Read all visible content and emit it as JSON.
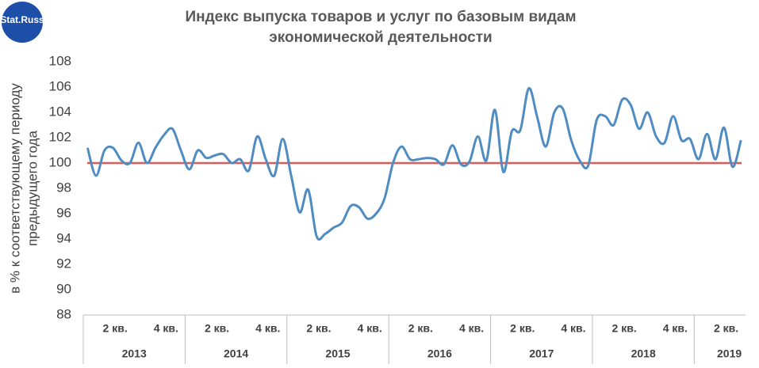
{
  "logo": "Stat.Russ",
  "chart_data": {
    "type": "line",
    "title": [
      "Индекс выпуска товаров и услуг по базовым видам",
      "экономической деятельности"
    ],
    "ylabel": [
      "в % к соответствующему периоду",
      "предыдущего года"
    ],
    "ylim": [
      88,
      108
    ],
    "yticks": [
      88,
      90,
      92,
      94,
      96,
      98,
      100,
      102,
      104,
      106,
      108
    ],
    "reference_line": {
      "value": 100,
      "color": "#e05a5a"
    },
    "groups": [
      {
        "label": "2013",
        "span": 12
      },
      {
        "label": "2014",
        "span": 12
      },
      {
        "label": "2015",
        "span": 12
      },
      {
        "label": "2016",
        "span": 12
      },
      {
        "label": "2017",
        "span": 12
      },
      {
        "label": "2018",
        "span": 12
      },
      {
        "label": "2019",
        "span": 6
      }
    ],
    "categories": [
      null,
      null,
      null,
      null,
      "2 кв.",
      null,
      null,
      null,
      null,
      null,
      "4 кв.",
      null,
      null,
      null,
      null,
      null,
      "2 кв.",
      null,
      null,
      null,
      null,
      null,
      "4 кв.",
      null,
      null,
      null,
      null,
      null,
      "2 кв.",
      null,
      null,
      null,
      null,
      null,
      "4 кв.",
      null,
      null,
      null,
      null,
      null,
      "2 кв.",
      null,
      null,
      null,
      null,
      null,
      "4 кв.",
      null,
      null,
      null,
      null,
      null,
      "2 кв.",
      null,
      null,
      null,
      null,
      null,
      "4 кв.",
      null,
      null,
      null,
      null,
      null,
      "2 кв.",
      null,
      null,
      null,
      null,
      null,
      "4 кв.",
      null,
      null,
      null,
      null,
      null,
      "2 кв.",
      null
    ],
    "series": [
      {
        "name": "Индекс",
        "color": "#4f8cc2",
        "values": [
          101.2,
          99.0,
          101.0,
          101.2,
          100.2,
          100.0,
          101.6,
          100.0,
          101.2,
          102.2,
          102.7,
          101.0,
          99.5,
          101.0,
          100.4,
          100.6,
          100.7,
          100.0,
          100.3,
          99.4,
          102.1,
          100.3,
          99.0,
          101.9,
          99.0,
          96.1,
          97.9,
          94.2,
          94.4,
          94.9,
          95.3,
          96.6,
          96.5,
          95.6,
          96.0,
          97.2,
          100.0,
          101.3,
          100.3,
          100.3,
          100.4,
          100.3,
          99.9,
          101.4,
          99.9,
          100.1,
          102.1,
          100.2,
          104.2,
          99.3,
          102.5,
          102.6,
          105.9,
          103.6,
          101.3,
          104.0,
          104.3,
          101.8,
          100.2,
          99.8,
          103.4,
          103.7,
          103.0,
          105.0,
          104.6,
          102.7,
          104.0,
          102.1,
          101.6,
          103.7,
          101.8,
          101.9,
          100.3,
          102.3,
          100.3,
          102.8,
          99.7,
          101.8
        ]
      }
    ]
  }
}
